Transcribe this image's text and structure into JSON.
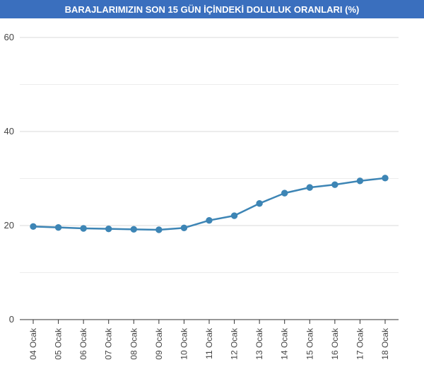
{
  "chart_data": {
    "type": "line",
    "title": "BARAJLARIMIZIN SON 15 GÜN İÇİNDEKİ DOLULUK ORANLARI (%)",
    "xlabel": "",
    "ylabel": "",
    "categories": [
      "04 Ocak",
      "05 Ocak",
      "06 Ocak",
      "07 Ocak",
      "08 Ocak",
      "09 Ocak",
      "10 Ocak",
      "11 Ocak",
      "12 Ocak",
      "13 Ocak",
      "14 Ocak",
      "15 Ocak",
      "16 Ocak",
      "17 Ocak",
      "18 Ocak"
    ],
    "series": [
      {
        "values": [
          19.8,
          19.6,
          19.4,
          19.3,
          19.2,
          19.1,
          19.5,
          21.1,
          22.1,
          24.7,
          26.9,
          28.1,
          28.7,
          29.5,
          30.1
        ]
      }
    ],
    "ylim": [
      0,
      60
    ],
    "yticks": [
      0,
      20,
      40,
      60
    ],
    "grid": true,
    "colors": {
      "title_bg": "#3a6fbe",
      "line": "#3d85b5",
      "grid": "#e6e6e6",
      "axis": "#333333"
    }
  }
}
